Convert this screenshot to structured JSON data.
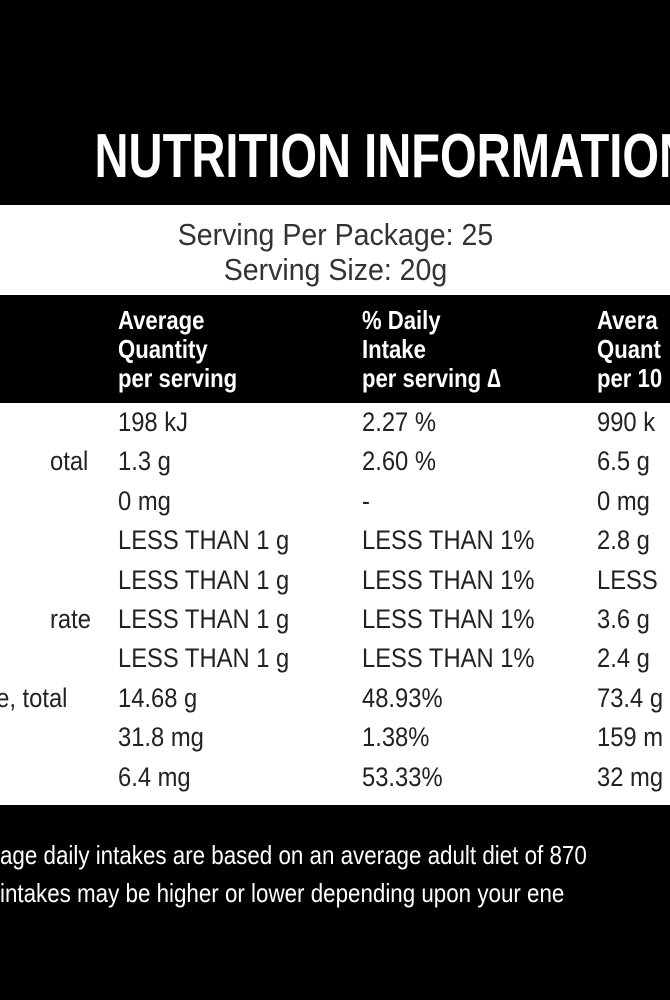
{
  "header": {
    "title": "NUTRITION INFORMATION",
    "servings_per_package": "Serving Per Package: 25",
    "serving_size": "Serving Size: 20g"
  },
  "table": {
    "columns": [
      [
        "Average",
        "Quantity",
        "per serving"
      ],
      [
        "% Daily",
        "Intake",
        "per serving ∆"
      ],
      [
        "Avera",
        "Quant",
        "per 10"
      ]
    ],
    "rows": [
      {
        "cells": [
          "198 kJ",
          "2.27 %",
          "990 k"
        ]
      },
      {
        "label": "otal",
        "cells": [
          "1.3 g",
          "2.60 %",
          "6.5 g"
        ]
      },
      {
        "cells": [
          "0 mg",
          "-",
          "0 mg"
        ]
      },
      {
        "cells": [
          "LESS THAN 1 g",
          "LESS THAN 1%",
          "2.8 g"
        ]
      },
      {
        "cells": [
          "LESS THAN 1 g",
          "LESS THAN 1%",
          "LESS"
        ]
      },
      {
        "label": "rate",
        "cells": [
          "LESS THAN 1 g",
          "LESS THAN 1%",
          "3.6 g"
        ]
      },
      {
        "cells": [
          "LESS THAN 1 g",
          "LESS THAN 1%",
          "2.4 g"
        ]
      },
      {
        "label": "ore, total",
        "cells": [
          "14.68 g",
          "48.93%",
          "73.4 g"
        ]
      },
      {
        "cells": [
          "31.8 mg",
          "1.38%",
          "159 m"
        ]
      },
      {
        "cells": [
          "6.4 mg",
          "53.33%",
          "32 mg"
        ]
      }
    ]
  },
  "footnote": [
    "age daily intakes are based on an average adult diet of 870",
    "intakes may be higher or lower depending upon your ene"
  ]
}
